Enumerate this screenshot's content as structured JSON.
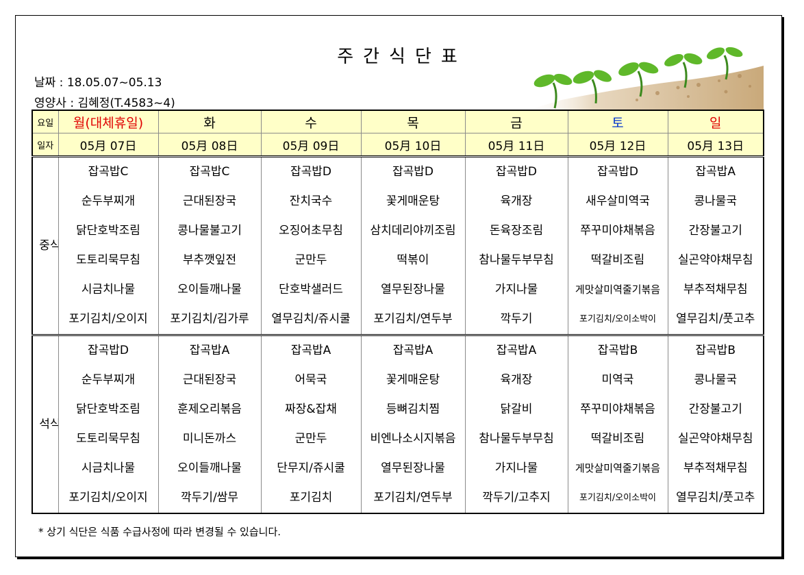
{
  "title": "주간식단표",
  "date_line": "날짜 : 18.05.07~05.13",
  "dietitian_line": "영양사 : 김혜정(T.4583~4)",
  "header_label_day": "요일",
  "header_label_date": "일자",
  "days": [
    {
      "name": "월(대체휴일)",
      "date": "05月 07日",
      "color": "#e00000"
    },
    {
      "name": "화",
      "date": "05月 08日",
      "color": "#000000"
    },
    {
      "name": "수",
      "date": "05月 09日",
      "color": "#000000"
    },
    {
      "name": "목",
      "date": "05月 10日",
      "color": "#000000"
    },
    {
      "name": "금",
      "date": "05月 11日",
      "color": "#000000"
    },
    {
      "name": "토",
      "date": "05月 12日",
      "color": "#0033cc"
    },
    {
      "name": "일",
      "date": "05月 13日",
      "color": "#e00000"
    }
  ],
  "lunch_label": "중식",
  "dinner_label": "석식",
  "lunch": [
    [
      "잡곡밥C",
      "순두부찌개",
      "닭단호박조림",
      "도토리묵무침",
      "시금치나물",
      "포기김치/오이지"
    ],
    [
      "잡곡밥C",
      "근대된장국",
      "콩나물불고기",
      "부추깻잎전",
      "오이들깨나물",
      "포기김치/김가루"
    ],
    [
      "잡곡밥D",
      "잔치국수",
      "오징어초무침",
      "군만두",
      "단호박샐러드",
      "열무김치/쥬시쿨"
    ],
    [
      "잡곡밥D",
      "꽃게매운탕",
      "삼치데리야끼조림",
      "떡볶이",
      "열무된장나물",
      "포기김치/연두부"
    ],
    [
      "잡곡밥D",
      "육개장",
      "돈육장조림",
      "참나물두부무침",
      "가지나물",
      "깍두기"
    ],
    [
      "잡곡밥D",
      "새우살미역국",
      "쭈꾸미야채볶음",
      "떡갈비조림",
      "게맛살미역줄기볶음",
      "포기김치/오이소박이"
    ],
    [
      "잡곡밥A",
      "콩나물국",
      "간장불고기",
      "실곤약야채무침",
      "부추적채무침",
      "열무김치/풋고추"
    ]
  ],
  "dinner": [
    [
      "잡곡밥D",
      "순두부찌개",
      "닭단호박조림",
      "도토리묵무침",
      "시금치나물",
      "포기김치/오이지"
    ],
    [
      "잡곡밥A",
      "근대된장국",
      "훈제오리볶음",
      "미니돈까스",
      "오이들깨나물",
      "깍두기/쌈무"
    ],
    [
      "잡곡밥A",
      "어묵국",
      "짜장&잡채",
      "군만두",
      "단무지/쥬시쿨",
      "포기김치"
    ],
    [
      "잡곡밥A",
      "꽃게매운탕",
      "등뼈김치찜",
      "비엔나소시지볶음",
      "열무된장나물",
      "포기김치/연두부"
    ],
    [
      "잡곡밥A",
      "육개장",
      "닭갈비",
      "참나물두부무침",
      "가지나물",
      "깍두기/고추지"
    ],
    [
      "잡곡밥B",
      "미역국",
      "쭈꾸미야채볶음",
      "떡갈비조림",
      "게맛살미역줄기볶음",
      "포기김치/오이소박이"
    ],
    [
      "잡곡밥B",
      "콩나물국",
      "간장불고기",
      "실곤약야채무침",
      "부추적채무침",
      "열무김치/풋고추"
    ]
  ],
  "note": "* 상기 식단은 식품 수급사정에 따라 변경될 수 있습니다."
}
